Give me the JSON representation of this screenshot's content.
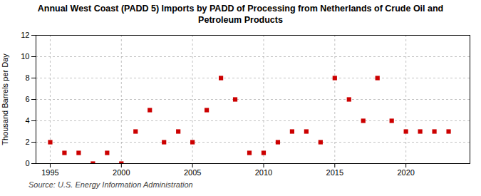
{
  "chart_data": {
    "type": "scatter",
    "title": "Annual West Coast (PADD 5) Imports by PADD of Processing from Netherlands of Crude Oil and\nPetroleum Products",
    "ylabel": "Thousand Barrels per Day",
    "source": "Source: U.S. Energy Information Administration",
    "x": [
      1995,
      1996,
      1997,
      1998,
      1999,
      2000,
      2001,
      2002,
      2003,
      2004,
      2005,
      2006,
      2007,
      2008,
      2009,
      2010,
      2011,
      2012,
      2013,
      2014,
      2015,
      2016,
      2017,
      2018,
      2019,
      2020,
      2021,
      2022,
      2023
    ],
    "values": [
      2,
      1,
      1,
      0,
      1,
      0,
      3,
      5,
      2,
      3,
      2,
      5,
      8,
      6,
      1,
      1,
      2,
      3,
      3,
      2,
      8,
      6,
      4,
      8,
      4,
      3,
      3,
      3,
      3
    ],
    "color": "#cc0000",
    "marker": "square",
    "xlim": [
      1994.0,
      2024.5
    ],
    "xticks": [
      1995,
      2000,
      2005,
      2010,
      2015,
      2020
    ],
    "ylim": [
      0,
      12
    ],
    "yticks": [
      0,
      2,
      4,
      6,
      8,
      10,
      12
    ],
    "grid": true
  }
}
